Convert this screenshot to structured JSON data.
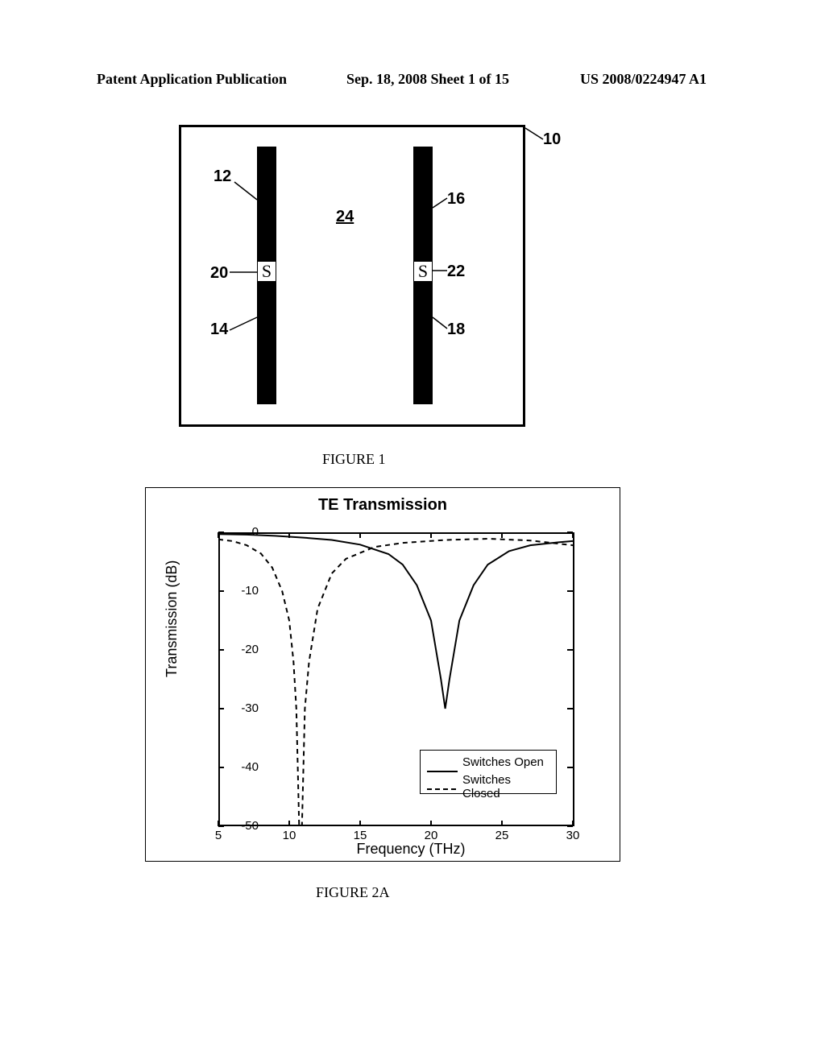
{
  "header": {
    "left": "Patent Application Publication",
    "mid": "Sep. 18, 2008  Sheet 1 of 15",
    "right": "US 2008/0224947 A1"
  },
  "figure1": {
    "caption": "FIGURE 1",
    "labels": {
      "n10": "10",
      "n12": "12",
      "n14": "14",
      "n16": "16",
      "n18": "18",
      "n20": "20",
      "n22": "22",
      "n24": "24"
    },
    "s_letter": "S"
  },
  "chart": {
    "caption": "FIGURE 2A",
    "title": "TE Transmission",
    "xlabel": "Frequency (THz)",
    "ylabel": "Transmission (dB)",
    "xlim": [
      5,
      30
    ],
    "ylim": [
      -50,
      0
    ],
    "xticks": [
      5,
      10,
      15,
      20,
      25,
      30
    ],
    "yticks": [
      0,
      -10,
      -20,
      -30,
      -40,
      -50
    ],
    "background_color": "#ffffff",
    "axis_color": "#000000",
    "legend": {
      "open": {
        "label": "Switches Open",
        "style": "solid",
        "color": "#000000"
      },
      "closed": {
        "label": "Switches Closed",
        "style": "dashed",
        "color": "#000000"
      }
    },
    "series_open": {
      "color": "#000000",
      "line_width": 2,
      "points": [
        [
          5,
          -0.3
        ],
        [
          7,
          -0.4
        ],
        [
          9,
          -0.6
        ],
        [
          11,
          -0.9
        ],
        [
          13,
          -1.3
        ],
        [
          15,
          -2.1
        ],
        [
          17,
          -3.7
        ],
        [
          18,
          -5.5
        ],
        [
          19,
          -9
        ],
        [
          20,
          -15
        ],
        [
          20.7,
          -25
        ],
        [
          21,
          -30
        ],
        [
          21.3,
          -25
        ],
        [
          22,
          -15
        ],
        [
          23,
          -9
        ],
        [
          24,
          -5.5
        ],
        [
          25.5,
          -3.2
        ],
        [
          27,
          -2.2
        ],
        [
          29,
          -1.7
        ],
        [
          30,
          -1.5
        ]
      ]
    },
    "series_closed": {
      "color": "#000000",
      "line_width": 2,
      "dash": "6,5",
      "points": [
        [
          5,
          -1.2
        ],
        [
          6,
          -1.5
        ],
        [
          7,
          -2.2
        ],
        [
          8,
          -3.6
        ],
        [
          8.8,
          -6
        ],
        [
          9.5,
          -10
        ],
        [
          10,
          -15
        ],
        [
          10.3,
          -22
        ],
        [
          10.5,
          -30
        ],
        [
          10.6,
          -40
        ],
        [
          10.7,
          -50
        ],
        [
          10.9,
          -50
        ],
        [
          11,
          -40
        ],
        [
          11.1,
          -30
        ],
        [
          11.4,
          -22
        ],
        [
          12,
          -13
        ],
        [
          13,
          -7
        ],
        [
          14,
          -4.5
        ],
        [
          16,
          -2.5
        ],
        [
          18,
          -1.8
        ],
        [
          21,
          -1.3
        ],
        [
          24,
          -1.1
        ],
        [
          27,
          -1.4
        ],
        [
          30,
          -2.2
        ]
      ]
    }
  }
}
